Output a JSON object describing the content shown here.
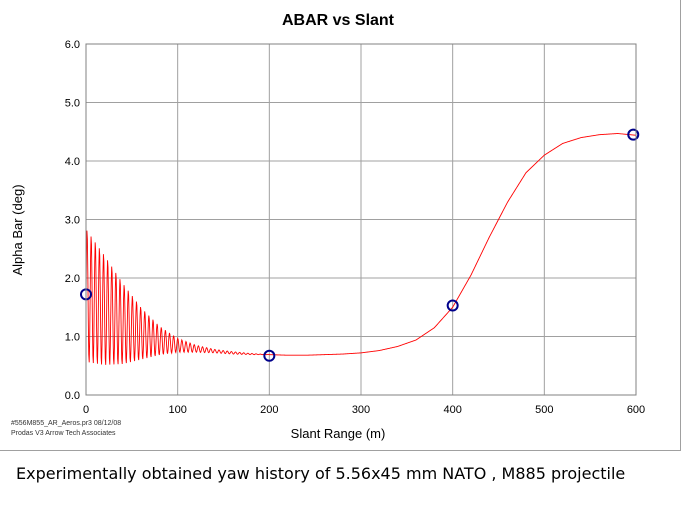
{
  "chart_data": {
    "type": "line",
    "title": "ABAR vs Slant",
    "xlabel": "Slant Range (m)",
    "ylabel": "Alpha Bar (deg)",
    "xlim": [
      0,
      600
    ],
    "ylim": [
      0,
      6
    ],
    "xticks": [
      0,
      100,
      200,
      300,
      400,
      500,
      600
    ],
    "yticks": [
      0,
      1,
      2,
      3,
      4,
      5,
      6
    ],
    "x_tick_labels": [
      "0",
      "100",
      "200",
      "300",
      "400",
      "500",
      "600"
    ],
    "y_tick_labels": [
      "0.0",
      "1.0",
      "2.0",
      "3.0",
      "4.0",
      "5.0",
      "6.0"
    ],
    "grid": true,
    "series": [
      {
        "type": "line",
        "color": "#ff0000",
        "x": [
          0,
          20,
          40,
          60,
          80,
          100,
          120,
          140,
          160,
          180,
          200,
          220,
          240,
          260,
          280,
          300,
          320,
          340,
          360,
          380,
          400,
          420,
          440,
          460,
          480,
          500,
          520,
          540,
          560,
          580,
          600
        ],
        "y": [
          1.7,
          1.45,
          1.22,
          1.05,
          0.93,
          0.85,
          0.79,
          0.75,
          0.72,
          0.7,
          0.69,
          0.68,
          0.68,
          0.69,
          0.7,
          0.72,
          0.76,
          0.83,
          0.94,
          1.15,
          1.5,
          2.05,
          2.7,
          3.3,
          3.8,
          4.1,
          4.3,
          4.4,
          4.45,
          4.47,
          4.44
        ],
        "oscillation_amplitude": [
          1.15,
          0.95,
          0.7,
          0.45,
          0.25,
          0.12,
          0.06,
          0.03,
          0.02,
          0.01,
          0.0,
          0.0,
          0.0,
          0.0,
          0.0,
          0.0,
          0.0,
          0.0,
          0.0,
          0.0,
          0.0,
          0.0,
          0.0,
          0.0,
          0.0,
          0.0,
          0.0,
          0.0,
          0.0,
          0.0,
          0.0
        ]
      },
      {
        "type": "scatter",
        "marker": "circle",
        "color": "#00008b",
        "x": [
          0,
          200,
          400,
          597
        ],
        "y": [
          1.72,
          0.67,
          1.53,
          4.45
        ]
      }
    ]
  },
  "footer": {
    "line1": "#556M855_AR_Aeros.pr3   08/12/08",
    "line2": "Prodas V3 Arrow Tech Associates"
  },
  "caption": "Experimentally obtained yaw history of 5.56x45 mm NATO , M885 projectile"
}
